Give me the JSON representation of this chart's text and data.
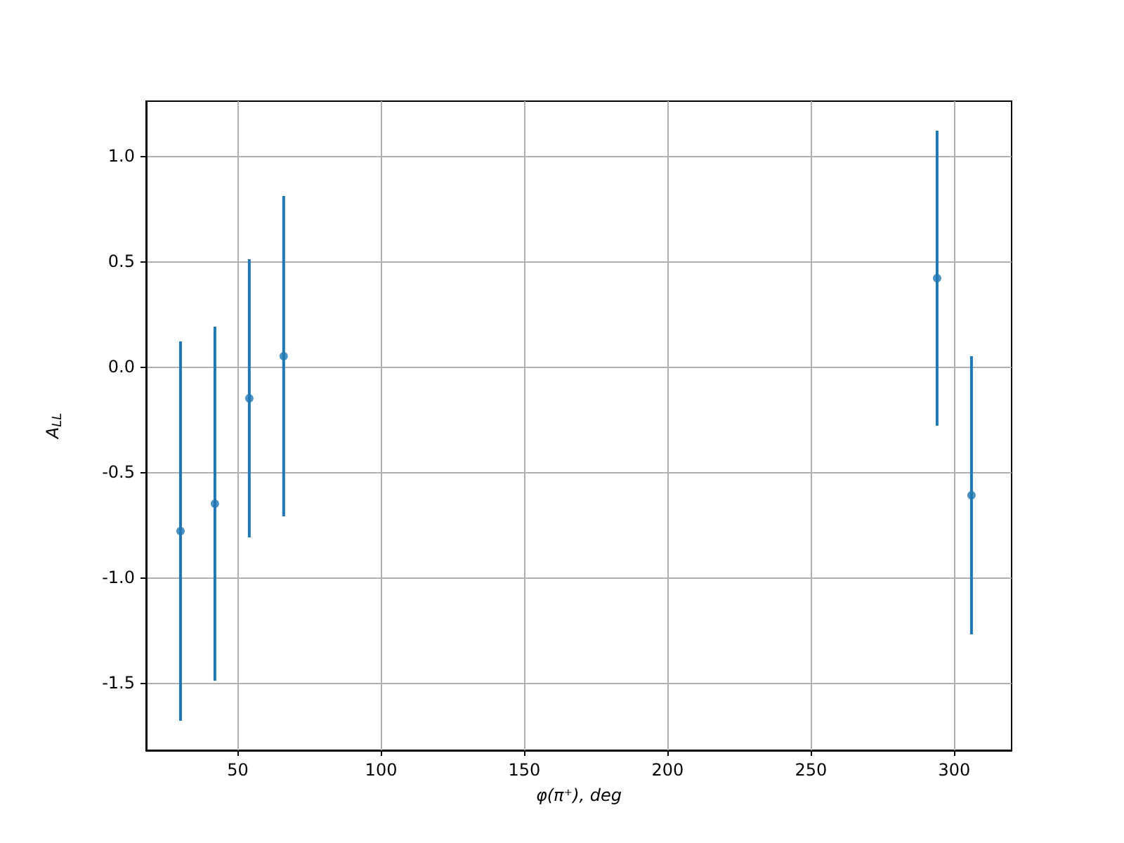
{
  "chart_data": {
    "type": "scatter",
    "xlabel": "φ(π⁺), deg",
    "ylabel": "A$_{LL}$",
    "x": [
      30,
      42,
      54,
      66,
      294,
      306
    ],
    "values": [
      -0.78,
      -0.65,
      -0.15,
      0.05,
      0.42,
      -0.61
    ],
    "errors": [
      0.9,
      0.84,
      0.66,
      0.76,
      0.7,
      0.66
    ],
    "color": "#1f77b4",
    "marker": "circle",
    "xlim": [
      18,
      320
    ],
    "xticks": [
      50,
      100,
      150,
      200,
      250,
      300
    ],
    "ylim": [
      -1.82,
      1.26
    ],
    "yticks": [
      -1.5,
      {
        "value": -1,
        "label": "-1.0"
      },
      -0.5,
      {
        "value": 0,
        "label": "0.0"
      },
      0.5,
      {
        "value": 1,
        "label": "1.0"
      }
    ],
    "grid": true
  }
}
